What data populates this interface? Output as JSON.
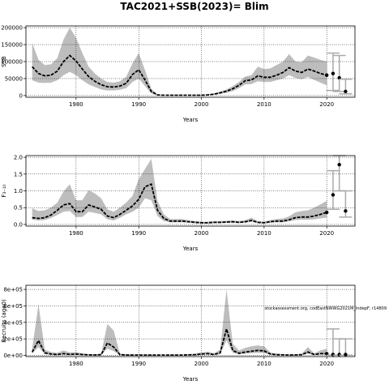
{
  "title": "TAC2021+SSB(2023)= Blim",
  "colors": {
    "band": "#bdbdbd",
    "line": "#000000",
    "interval": "#aaaaaa",
    "grid": "#000000"
  },
  "chart_data": [
    {
      "type": "line",
      "id": "ssb",
      "xlabel": "Years",
      "ylabel": "SSB",
      "xlim": [
        1972,
        2024.5
      ],
      "ylim": [
        -5000,
        205000
      ],
      "xticks": [
        1980,
        1990,
        2000,
        2010,
        2020
      ],
      "yticks": [
        0,
        50000,
        100000,
        150000,
        200000
      ],
      "ytick_labels": [
        "0",
        "50000",
        "100000",
        "150000",
        "200000"
      ],
      "grid": true,
      "x": [
        1973,
        1974,
        1975,
        1976,
        1977,
        1978,
        1979,
        1980,
        1981,
        1982,
        1983,
        1984,
        1985,
        1986,
        1987,
        1988,
        1989,
        1990,
        1991,
        1992,
        1993,
        1994,
        1995,
        1996,
        1997,
        1998,
        1999,
        2000,
        2001,
        2002,
        2003,
        2004,
        2005,
        2006,
        2007,
        2008,
        2009,
        2010,
        2011,
        2012,
        2013,
        2014,
        2015,
        2016,
        2017,
        2018,
        2019,
        2020
      ],
      "median": [
        85000,
        65000,
        58000,
        60000,
        72000,
        100000,
        118000,
        102000,
        78000,
        56000,
        42000,
        32000,
        26000,
        25000,
        28000,
        36000,
        62000,
        76000,
        46000,
        12000,
        2000,
        1000,
        1000,
        1000,
        1000,
        1000,
        1000,
        1000,
        2000,
        4000,
        8000,
        13000,
        20000,
        30000,
        44000,
        46000,
        58000,
        54000,
        54000,
        60000,
        68000,
        82000,
        72000,
        68000,
        78000,
        72000,
        65000,
        60000
      ],
      "lower": [
        45000,
        38000,
        37000,
        38000,
        45000,
        60000,
        70000,
        60000,
        45000,
        33000,
        25000,
        18000,
        15000,
        15000,
        17000,
        22000,
        40000,
        50000,
        28000,
        6000,
        1000,
        500,
        500,
        500,
        500,
        500,
        500,
        500,
        1000,
        2500,
        5000,
        8000,
        13000,
        22000,
        33000,
        34000,
        42000,
        40000,
        40000,
        45000,
        50000,
        60000,
        52000,
        48000,
        55000,
        46000,
        38000,
        30000
      ],
      "upper": [
        155000,
        105000,
        90000,
        92000,
        110000,
        165000,
        200000,
        170000,
        125000,
        85000,
        65000,
        50000,
        40000,
        38000,
        42000,
        55000,
        95000,
        125000,
        75000,
        20000,
        3000,
        1500,
        1500,
        1500,
        1500,
        1500,
        1500,
        1500,
        3000,
        6000,
        12000,
        18000,
        28000,
        40000,
        56000,
        60000,
        85000,
        78000,
        80000,
        90000,
        100000,
        122000,
        100000,
        98000,
        118000,
        112000,
        105000,
        100000
      ],
      "forecast": [
        {
          "x": 2021,
          "value": 65000,
          "lower": 15000,
          "upper": 125000
        },
        {
          "x": 2022,
          "value": 52000,
          "lower": 12000,
          "upper": 118000
        },
        {
          "x": 2023,
          "value": 12000,
          "lower": 5000,
          "upper": 48000
        }
      ]
    },
    {
      "type": "line",
      "id": "f",
      "xlabel": "Years",
      "ylabel": "F₃₋₁₀",
      "xlim": [
        1972,
        2024.5
      ],
      "ylim": [
        -0.05,
        2.05
      ],
      "xticks": [
        1980,
        1990,
        2000,
        2010,
        2020
      ],
      "yticks": [
        0,
        0.5,
        1,
        1.5,
        2
      ],
      "ytick_labels": [
        "0.0",
        "0.5",
        "1.0",
        "1.5",
        "2.0"
      ],
      "grid": true,
      "x": [
        1973,
        1974,
        1975,
        1976,
        1977,
        1978,
        1979,
        1980,
        1981,
        1982,
        1983,
        1984,
        1985,
        1986,
        1987,
        1988,
        1989,
        1990,
        1991,
        1992,
        1993,
        1994,
        1995,
        1996,
        1997,
        1998,
        1999,
        2000,
        2001,
        2002,
        2003,
        2004,
        2005,
        2006,
        2007,
        2008,
        2009,
        2010,
        2011,
        2012,
        2013,
        2014,
        2015,
        2016,
        2017,
        2018,
        2019,
        2020
      ],
      "median": [
        0.2,
        0.18,
        0.2,
        0.28,
        0.42,
        0.58,
        0.62,
        0.38,
        0.38,
        0.58,
        0.52,
        0.45,
        0.25,
        0.2,
        0.3,
        0.42,
        0.55,
        0.75,
        1.12,
        1.2,
        0.42,
        0.18,
        0.1,
        0.1,
        0.1,
        0.08,
        0.06,
        0.05,
        0.05,
        0.06,
        0.06,
        0.07,
        0.08,
        0.06,
        0.08,
        0.12,
        0.06,
        0.05,
        0.08,
        0.1,
        0.1,
        0.14,
        0.2,
        0.22,
        0.22,
        0.25,
        0.3,
        0.36
      ],
      "lower": [
        0.14,
        0.12,
        0.13,
        0.19,
        0.28,
        0.38,
        0.4,
        0.22,
        0.22,
        0.38,
        0.34,
        0.3,
        0.15,
        0.12,
        0.2,
        0.3,
        0.38,
        0.5,
        0.78,
        0.72,
        0.25,
        0.1,
        0.06,
        0.06,
        0.06,
        0.05,
        0.04,
        0.03,
        0.03,
        0.04,
        0.04,
        0.05,
        0.05,
        0.04,
        0.05,
        0.08,
        0.04,
        0.03,
        0.05,
        0.06,
        0.06,
        0.09,
        0.13,
        0.14,
        0.14,
        0.15,
        0.18,
        0.2
      ],
      "upper": [
        0.48,
        0.4,
        0.42,
        0.5,
        0.65,
        0.98,
        1.2,
        0.72,
        0.72,
        1.02,
        0.92,
        0.78,
        0.45,
        0.38,
        0.5,
        0.65,
        0.85,
        1.35,
        1.65,
        1.95,
        0.7,
        0.3,
        0.16,
        0.16,
        0.16,
        0.12,
        0.1,
        0.08,
        0.08,
        0.1,
        0.1,
        0.11,
        0.12,
        0.1,
        0.13,
        0.2,
        0.1,
        0.08,
        0.13,
        0.16,
        0.18,
        0.24,
        0.36,
        0.4,
        0.42,
        0.5,
        0.6,
        0.7
      ],
      "forecast": [
        {
          "x": 2021,
          "value": 0.88,
          "lower": 0.45,
          "upper": 1.6
        },
        {
          "x": 2022,
          "value": 1.78,
          "lower": 1.0,
          "upper": 2.05
        },
        {
          "x": 2023,
          "value": 0.4,
          "lower": 0.22,
          "upper": 1.0
        }
      ]
    },
    {
      "type": "line",
      "id": "recruits",
      "xlabel": "Years",
      "ylabel": "Recruits (age0)",
      "xlim": [
        1972,
        2024.5
      ],
      "ylim": [
        -15000,
        850000
      ],
      "xticks": [
        1980,
        1990,
        2000,
        2010,
        2020
      ],
      "yticks": [
        0,
        200000,
        400000,
        600000,
        800000
      ],
      "ytick_labels": [
        "0e+00",
        "2e+05",
        "4e+05",
        "6e+05",
        "8e+05"
      ],
      "grid": true,
      "annotation": "stockassessment.org, codEastNWWG2021M_IndepF, r14809",
      "x": [
        1973,
        1974,
        1975,
        1976,
        1977,
        1978,
        1979,
        1980,
        1981,
        1982,
        1983,
        1984,
        1985,
        1986,
        1987,
        1988,
        1989,
        1990,
        1991,
        1992,
        1993,
        1994,
        1995,
        1996,
        1997,
        1998,
        1999,
        2000,
        2001,
        2002,
        2003,
        2004,
        2005,
        2006,
        2007,
        2008,
        2009,
        2010,
        2011,
        2012,
        2013,
        2014,
        2015,
        2016,
        2017,
        2018,
        2019,
        2020
      ],
      "median": [
        40000,
        180000,
        30000,
        15000,
        10000,
        20000,
        12000,
        15000,
        10000,
        6000,
        5000,
        8000,
        150000,
        100000,
        8000,
        5000,
        4000,
        4000,
        4000,
        4000,
        4000,
        4000,
        4000,
        4000,
        4000,
        6000,
        8000,
        15000,
        20000,
        10000,
        30000,
        320000,
        60000,
        25000,
        40000,
        50000,
        60000,
        55000,
        15000,
        8000,
        6000,
        4000,
        5000,
        8000,
        40000,
        10000,
        20000,
        20000
      ],
      "lower": [
        20000,
        100000,
        15000,
        8000,
        5000,
        10000,
        6000,
        8000,
        5000,
        3000,
        2000,
        4000,
        80000,
        50000,
        4000,
        2000,
        2000,
        2000,
        2000,
        2000,
        2000,
        2000,
        2000,
        2000,
        2000,
        3000,
        4000,
        8000,
        10000,
        5000,
        15000,
        180000,
        30000,
        12000,
        20000,
        25000,
        30000,
        28000,
        8000,
        4000,
        3000,
        2000,
        2500,
        4000,
        20000,
        5000,
        10000,
        8000
      ],
      "upper": [
        80000,
        620000,
        70000,
        40000,
        30000,
        60000,
        35000,
        40000,
        25000,
        15000,
        12000,
        20000,
        380000,
        300000,
        20000,
        12000,
        10000,
        10000,
        10000,
        10000,
        10000,
        10000,
        10000,
        10000,
        10000,
        15000,
        20000,
        35000,
        45000,
        25000,
        70000,
        800000,
        140000,
        60000,
        90000,
        110000,
        120000,
        110000,
        35000,
        20000,
        15000,
        10000,
        12000,
        20000,
        100000,
        25000,
        60000,
        80000
      ],
      "forecast": [
        {
          "x": 2021,
          "value": 10000,
          "lower": 2000,
          "upper": 320000
        },
        {
          "x": 2022,
          "value": 10000,
          "lower": 2000,
          "upper": 200000
        },
        {
          "x": 2023,
          "value": 10000,
          "lower": 2000,
          "upper": 200000
        }
      ]
    }
  ]
}
